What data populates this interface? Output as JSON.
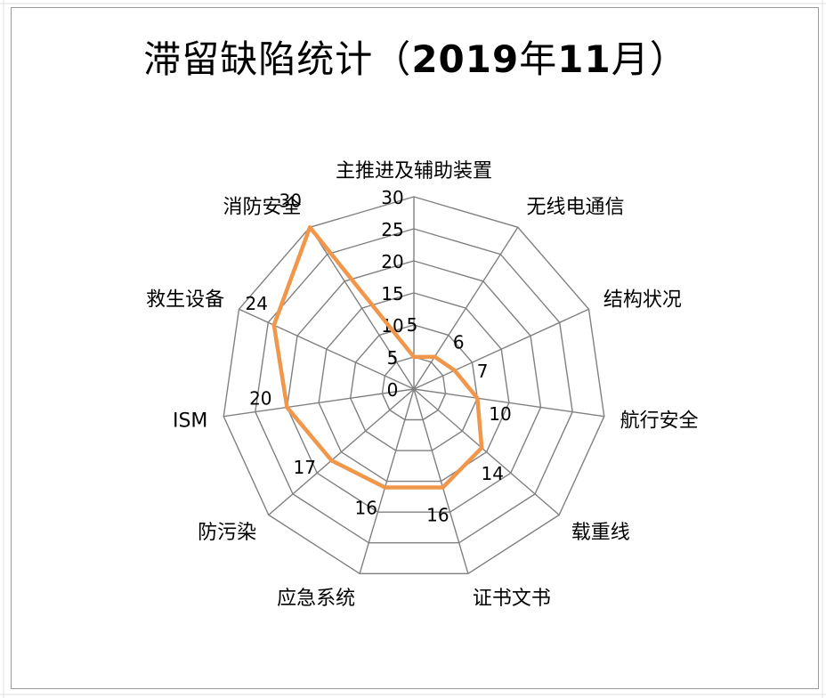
{
  "chart_data": {
    "type": "radar",
    "title": "滞留缺陷统计（2019年11月）",
    "title_parts": [
      "滞留缺陷统计（",
      "2019",
      "年",
      "11",
      "月）"
    ],
    "categories": [
      "主推进及辅助装置",
      "无线电通信",
      "结构状况",
      "航行安全",
      "载重线",
      "证书文书",
      "应急系统",
      "防污染",
      "ISM",
      "救生设备",
      "消防安全"
    ],
    "series": [
      {
        "values": [
          5,
          6,
          7,
          10,
          14,
          16,
          16,
          17,
          20,
          24,
          30
        ]
      }
    ],
    "axis_ticks": [
      0,
      5,
      10,
      15,
      20,
      25,
      30
    ],
    "range": [
      0,
      30
    ],
    "grid": true,
    "legend": "none",
    "line_color": "#F0974B",
    "grid_color": "#808080"
  }
}
